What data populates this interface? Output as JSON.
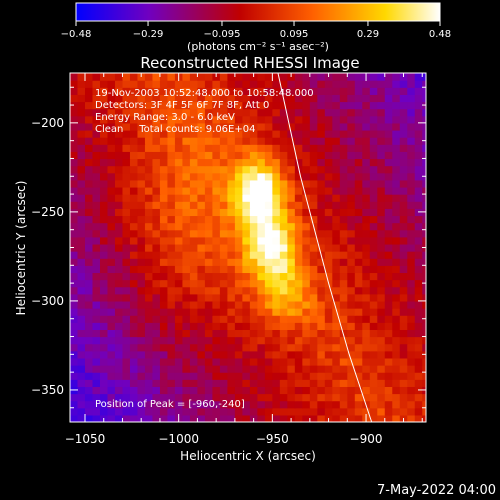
{
  "chart_data": {
    "type": "heatmap",
    "title": "Reconstructed RHESSI Image",
    "xlabel": "Heliocentric X (arcsec)",
    "ylabel": "Heliocentric Y (arcsec)",
    "xlim": [
      -1058,
      -868
    ],
    "ylim": [
      -368,
      -172
    ],
    "x_ticks": [
      -1050,
      -1000,
      -950,
      -900
    ],
    "y_ticks": [
      -350,
      -300,
      -250,
      -200
    ],
    "x_tick_labels": [
      "−1050",
      "−1000",
      "−950",
      "−900"
    ],
    "y_tick_labels": [
      "−350",
      "−300",
      "−250",
      "−200"
    ],
    "colorbar": {
      "min": -0.48,
      "max": 0.48,
      "ticks": [
        -0.48,
        -0.29,
        -0.095,
        0.095,
        0.29,
        0.48
      ],
      "tick_labels": [
        "−0.48",
        "−0.29",
        "−0.095",
        "0.095",
        "0.29",
        "0.48"
      ],
      "unit_label": "(photons cm⁻² s⁻¹ asec⁻²)",
      "colors": [
        "#0000ff",
        "#7000c0",
        "#c00000",
        "#ff6000",
        "#ffd800",
        "#ffffff"
      ]
    },
    "annotations": [
      "19-Nov-2003 10:52:48.000 to 10:58:48.000",
      "Detectors: 3F 4F 5F 6F 7F 8F, Att 0",
      "Energy Range: 3.0 - 6.0 keV",
      "Clean     Total counts: 9.06E+04"
    ],
    "peak_label": "Position of Peak = [-960,-240]",
    "limb_line": {
      "x": [
        -947,
        -935,
        -920,
        -909,
        -897
      ],
      "y": [
        -172,
        -230,
        -290,
        -330,
        -368
      ]
    },
    "sources": [
      {
        "x": -959,
        "y": -240,
        "amp": 0.48,
        "sx": 9,
        "sy": 13
      },
      {
        "x": -952,
        "y": -272,
        "amp": 0.42,
        "sx": 10,
        "sy": 14
      },
      {
        "x": -945,
        "y": -300,
        "amp": 0.2,
        "sx": 10,
        "sy": 10
      },
      {
        "x": -1000,
        "y": -260,
        "amp": 0.14,
        "sx": 25,
        "sy": 40
      }
    ],
    "date_label": "7-May-2022 04:00"
  }
}
